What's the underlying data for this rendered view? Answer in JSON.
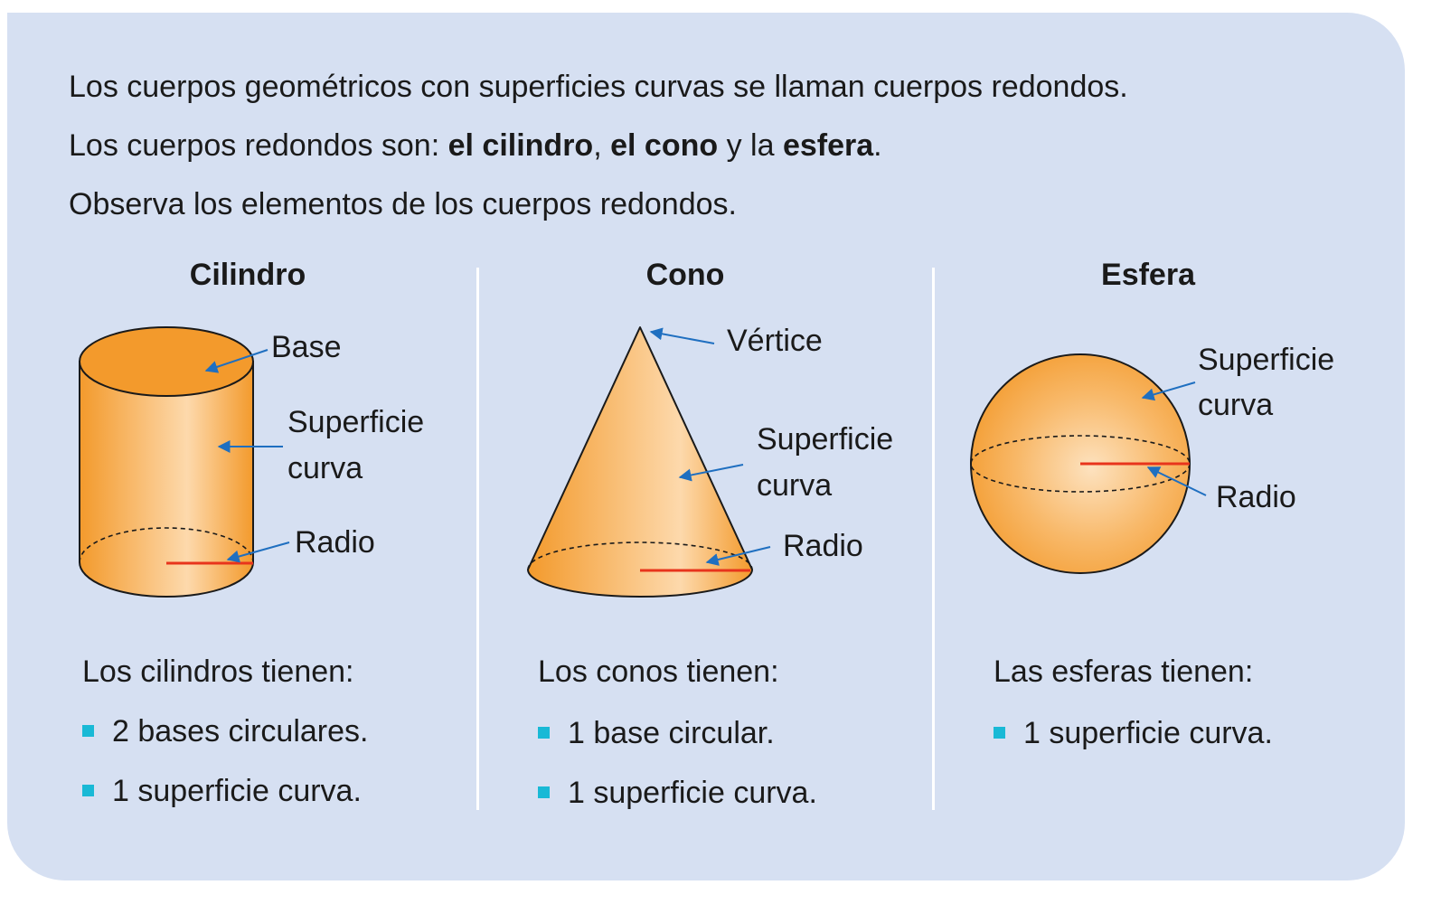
{
  "intro": {
    "line1": "Los cuerpos geométricos con superficies curvas se llaman cuerpos redondos.",
    "line2_prefix": "Los cuerpos redondos son: ",
    "line2_cilindro": "el cilindro",
    "line2_sep": ", ",
    "line2_cono": "el cono",
    "line2_y": " y la ",
    "line2_esfera": "esfera",
    "line2_end": ".",
    "line3": "Observa los elementos de los cuerpos redondos."
  },
  "cilindro": {
    "title": "Cilindro",
    "label_base": "Base",
    "label_surface_1": "Superficie",
    "label_surface_2": "curva",
    "label_radius": "Radio",
    "has_title": "Los cilindros tienen:",
    "bullets": [
      "2 bases circulares.",
      "1 superficie curva."
    ]
  },
  "cono": {
    "title": "Cono",
    "label_vertex": "Vértice",
    "label_surface_1": "Superficie",
    "label_surface_2": "curva",
    "label_radius": "Radio",
    "has_title": "Los conos tienen:",
    "bullets": [
      "1 base circular.",
      "1 superficie curva."
    ]
  },
  "esfera": {
    "title": "Esfera",
    "label_surface_1": "Superficie",
    "label_surface_2": "curva",
    "label_radius": "Radio",
    "has_title": "Las esferas tienen:",
    "bullets": [
      "1 superficie curva."
    ]
  },
  "colors": {
    "panel": "#d6e0f2",
    "shape_orange": "#f39a2c",
    "shape_light": "#fdd9ac",
    "arrow_blue": "#1f6fc0",
    "radius_red": "#e8341c",
    "bullet_cyan": "#19b9d6"
  }
}
